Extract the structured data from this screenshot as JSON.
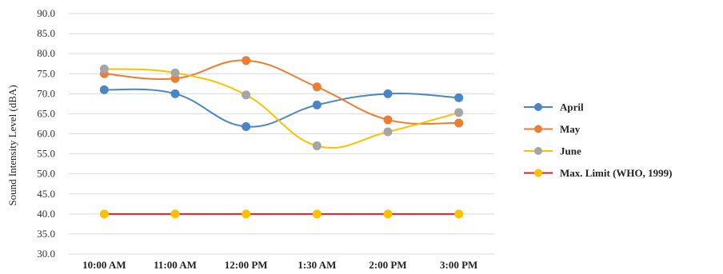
{
  "chart_data": {
    "type": "line",
    "title": "",
    "xlabel": "",
    "ylabel": "Sound Intensity Level (dBA)",
    "ylim": [
      30,
      90
    ],
    "y_ticks": [
      "30.0",
      "35.0",
      "40.0",
      "45.0",
      "50.0",
      "55.0",
      "60.0",
      "65.0",
      "70.0",
      "75.0",
      "80.0",
      "85.0",
      "90.0"
    ],
    "grid": true,
    "legend_position": "right",
    "categories": [
      "10:00 AM",
      "11:00 AM",
      "12:00 PM",
      "1:30 AM",
      "2:00 PM",
      "3:00 PM"
    ],
    "series": [
      {
        "name": "April",
        "color": "#4A86C6",
        "marker_color": "#4A86C6",
        "values": [
          71.0,
          70.0,
          61.8,
          67.2,
          70.0,
          69.0
        ]
      },
      {
        "name": "May",
        "color": "#ED7D31",
        "marker_color": "#ED7D31",
        "values": [
          75.0,
          73.8,
          78.3,
          71.7,
          63.5,
          62.7
        ]
      },
      {
        "name": "June",
        "color": "#FFC000",
        "marker_color": "#A5A5A5",
        "values": [
          76.2,
          75.2,
          69.7,
          57.0,
          60.5,
          65.3
        ]
      },
      {
        "name": "Max. Limit (WHO, 1999)",
        "color": "#E02020",
        "marker_color": "#FFC000",
        "values": [
          40,
          40,
          40,
          40,
          40,
          40
        ]
      }
    ]
  }
}
